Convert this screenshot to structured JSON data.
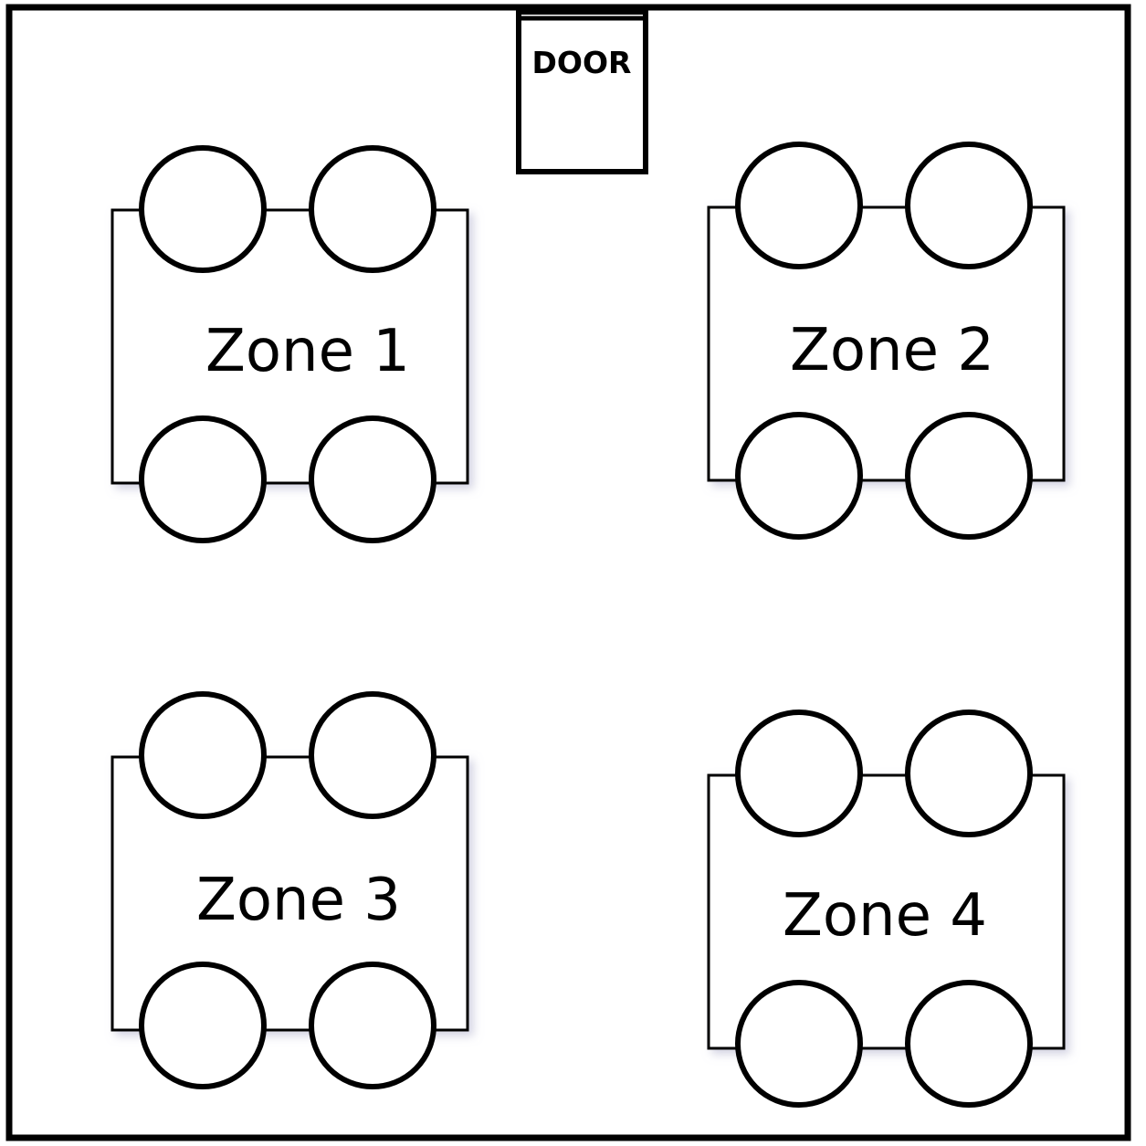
{
  "door": {
    "label": "DOOR"
  },
  "zones": [
    {
      "label": "Zone 1",
      "seats": 4
    },
    {
      "label": "Zone 2",
      "seats": 4
    },
    {
      "label": "Zone 3",
      "seats": 4
    },
    {
      "label": "Zone 4",
      "seats": 4
    }
  ],
  "colors": {
    "stroke": "#000000",
    "background": "#ffffff",
    "door_text": "#000000",
    "table_shadow": "#c8c8dc"
  }
}
